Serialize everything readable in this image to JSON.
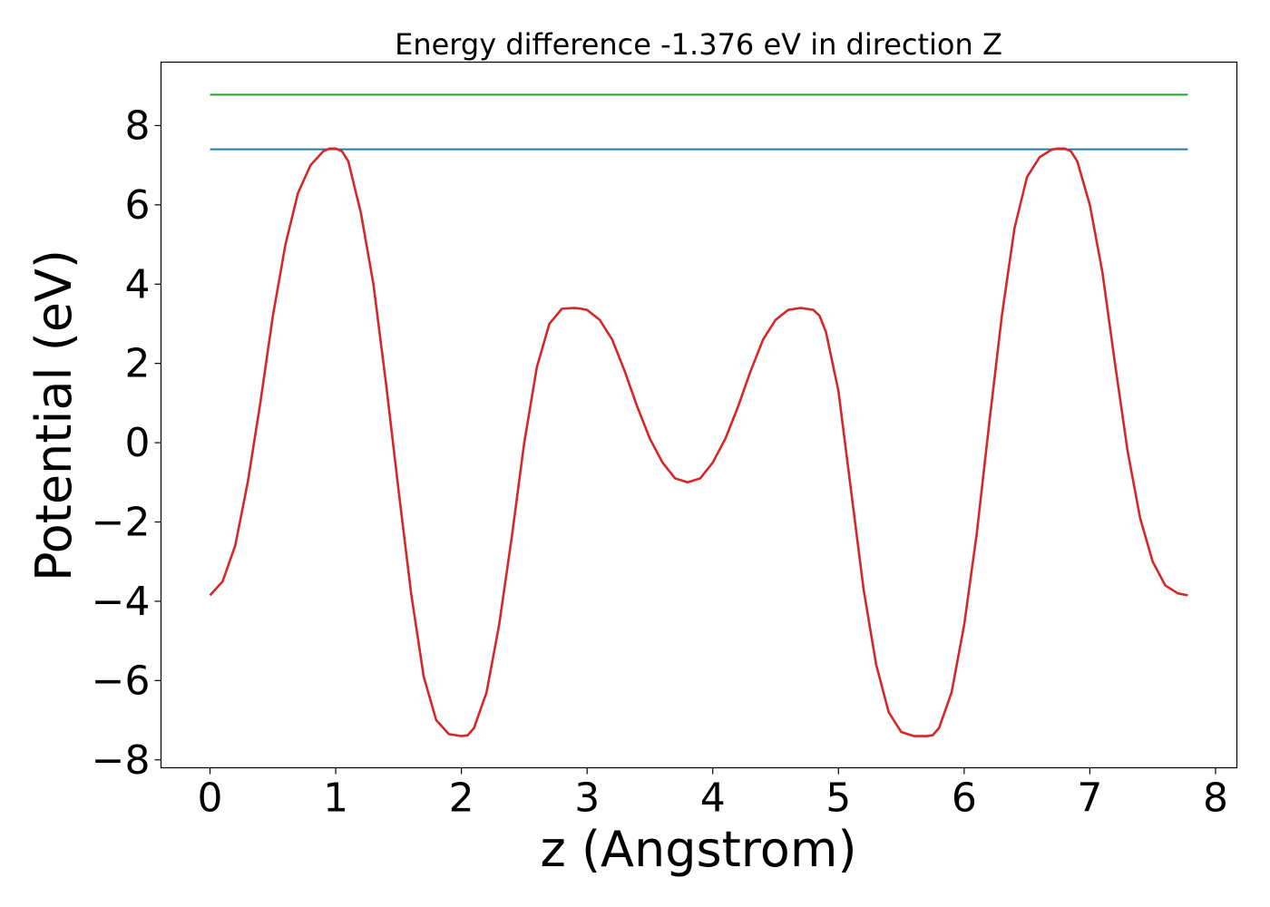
{
  "chart_data": {
    "type": "line",
    "title": "Energy difference -1.376 eV in direction Z",
    "xlabel": "z (Angstrom)",
    "ylabel": "Potential (eV)",
    "xlim": [
      -0.39,
      8.17
    ],
    "ylim": [
      -8.2,
      9.6
    ],
    "xticks": [
      0,
      1,
      2,
      3,
      4,
      5,
      6,
      7,
      8
    ],
    "yticks": [
      -8,
      -6,
      -4,
      -2,
      0,
      2,
      4,
      6,
      8
    ],
    "xtick_labels": [
      "0",
      "1",
      "2",
      "3",
      "4",
      "5",
      "6",
      "7",
      "8"
    ],
    "ytick_labels": [
      "−8",
      "−6",
      "−4",
      "−2",
      "0",
      "2",
      "4",
      "6",
      "8"
    ],
    "grid": false,
    "series": [
      {
        "color": "#2ca02c",
        "x": [
          0,
          7.78
        ],
        "y": [
          8.78,
          8.78
        ]
      },
      {
        "color": "#1f77b4",
        "x": [
          0,
          7.78
        ],
        "y": [
          7.4,
          7.4
        ]
      },
      {
        "color": "#d62728",
        "x": [
          0.0,
          0.1,
          0.2,
          0.3,
          0.4,
          0.5,
          0.6,
          0.7,
          0.8,
          0.9,
          0.95,
          1.0,
          1.05,
          1.1,
          1.2,
          1.3,
          1.4,
          1.5,
          1.6,
          1.7,
          1.8,
          1.9,
          2.0,
          2.05,
          2.1,
          2.2,
          2.3,
          2.4,
          2.5,
          2.6,
          2.7,
          2.8,
          2.9,
          2.95,
          3.0,
          3.1,
          3.2,
          3.3,
          3.4,
          3.5,
          3.6,
          3.7,
          3.8,
          3.9,
          4.0,
          4.1,
          4.2,
          4.3,
          4.4,
          4.5,
          4.6,
          4.7,
          4.8,
          4.85,
          4.9,
          5.0,
          5.1,
          5.2,
          5.3,
          5.4,
          5.5,
          5.6,
          5.7,
          5.75,
          5.8,
          5.9,
          6.0,
          6.1,
          6.2,
          6.3,
          6.4,
          6.5,
          6.6,
          6.7,
          6.75,
          6.8,
          6.85,
          6.9,
          7.0,
          7.1,
          7.2,
          7.3,
          7.4,
          7.5,
          7.6,
          7.7,
          7.78
        ],
        "y": [
          -3.85,
          -3.5,
          -2.6,
          -1.0,
          1.0,
          3.2,
          5.0,
          6.3,
          7.0,
          7.35,
          7.42,
          7.42,
          7.35,
          7.1,
          5.8,
          4.0,
          1.5,
          -1.2,
          -3.8,
          -5.9,
          -7.0,
          -7.35,
          -7.4,
          -7.38,
          -7.2,
          -6.3,
          -4.6,
          -2.4,
          0.0,
          1.9,
          3.0,
          3.38,
          3.4,
          3.38,
          3.35,
          3.1,
          2.6,
          1.8,
          0.9,
          0.1,
          -0.5,
          -0.9,
          -1.0,
          -0.9,
          -0.5,
          0.1,
          0.9,
          1.8,
          2.6,
          3.1,
          3.35,
          3.4,
          3.35,
          3.2,
          2.8,
          1.3,
          -1.2,
          -3.7,
          -5.6,
          -6.8,
          -7.3,
          -7.4,
          -7.4,
          -7.38,
          -7.2,
          -6.3,
          -4.6,
          -2.3,
          0.5,
          3.2,
          5.4,
          6.7,
          7.2,
          7.4,
          7.42,
          7.42,
          7.35,
          7.1,
          6.0,
          4.3,
          2.0,
          -0.2,
          -1.9,
          -3.0,
          -3.6,
          -3.8,
          -3.85
        ]
      }
    ]
  }
}
